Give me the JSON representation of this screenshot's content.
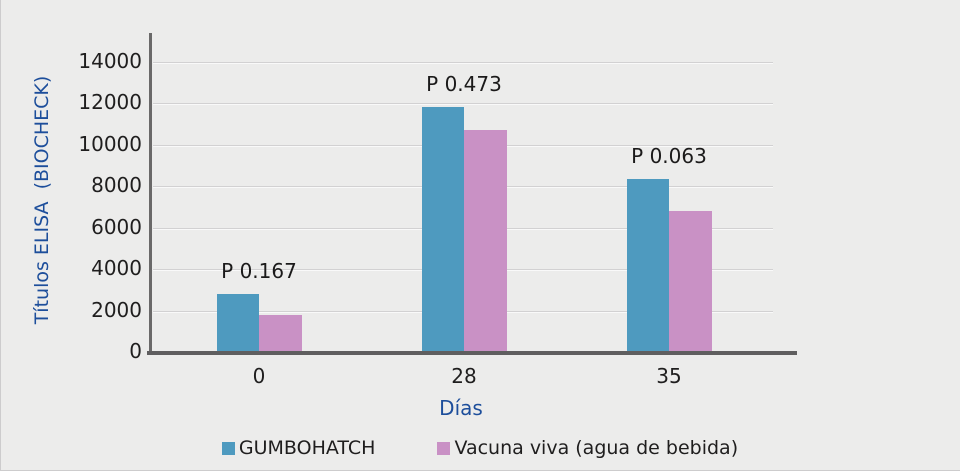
{
  "chart_data": {
    "type": "bar",
    "title": "",
    "categories": [
      "0",
      "28",
      "35"
    ],
    "series": [
      {
        "name": "GUMBOHATCH",
        "color": "#4E9ABF",
        "values": [
          2800,
          11850,
          8350
        ]
      },
      {
        "name": "Vacuna viva (agua de bebida)",
        "color": "#C991C5",
        "values": [
          1800,
          10700,
          6800
        ]
      }
    ],
    "annotations": [
      {
        "category": "0",
        "label": "P 0.167"
      },
      {
        "category": "28",
        "label": "P 0.473"
      },
      {
        "category": "35",
        "label": "P 0.063"
      }
    ],
    "xlabel": "Días",
    "ylabel": "Títulos ELISA  (BIOCHECK)",
    "ylim": [
      0,
      14000
    ],
    "yticks": [
      0,
      2000,
      4000,
      6000,
      8000,
      10000,
      12000,
      14000
    ],
    "grid": true,
    "legend_position": "bottom"
  },
  "colors": {
    "background": "#ECECEB",
    "axis_line": "#6A6969",
    "gridline": "#D2D1D2",
    "tick_text": "#1F1E1E",
    "axis_title_text": "#1D4E9B",
    "annotation_text": "#1B1A1A"
  }
}
